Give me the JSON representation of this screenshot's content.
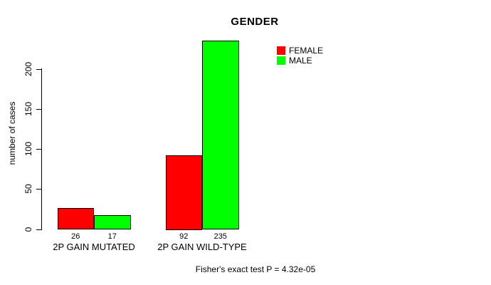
{
  "chart_data": {
    "type": "bar",
    "title": "GENDER",
    "ylabel": "number of cases",
    "xlabel": "",
    "categories": [
      "2P GAIN MUTATED",
      "2P GAIN WILD-TYPE"
    ],
    "series": [
      {
        "name": "FEMALE",
        "color": "#ff0000",
        "values": [
          26,
          92
        ]
      },
      {
        "name": "MALE",
        "color": "#00ff00",
        "values": [
          17,
          235
        ]
      }
    ],
    "yticks": [
      0,
      50,
      100,
      150,
      200
    ],
    "ylim": [
      0,
      200
    ],
    "grid": false,
    "legend_position": "top-right",
    "bar_border_color": "#000000",
    "axis_color": "#000000",
    "background_color": "#ffffff",
    "annotation": "Fisher's exact test P = 4.32e-05"
  }
}
